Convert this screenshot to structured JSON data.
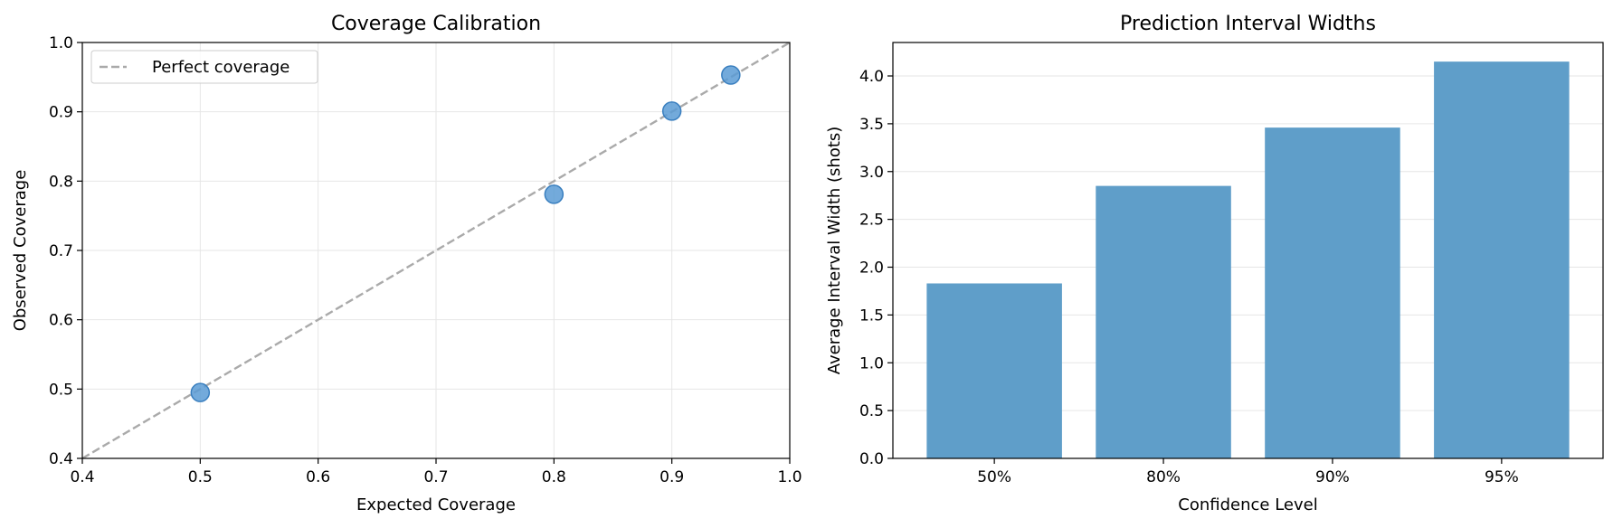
{
  "chart_data": [
    {
      "type": "scatter",
      "title": "Coverage Calibration",
      "xlabel": "Expected Coverage",
      "ylabel": "Observed Coverage",
      "xlim": [
        0.4,
        1.0
      ],
      "ylim": [
        0.4,
        1.0
      ],
      "xticks": [
        "0.4",
        "0.5",
        "0.6",
        "0.7",
        "0.8",
        "0.9",
        "1.0"
      ],
      "yticks": [
        "0.4",
        "0.5",
        "0.6",
        "0.7",
        "0.8",
        "0.9",
        "1.0"
      ],
      "grid": true,
      "legend": {
        "placement": "top-left",
        "entries": [
          "Perfect coverage"
        ]
      },
      "reference_line": {
        "name": "Perfect coverage",
        "x": [
          0.4,
          1.0
        ],
        "y": [
          0.4,
          1.0
        ],
        "color": "#aaaaaa",
        "style": "dashed"
      },
      "points": [
        {
          "x": 0.5,
          "y": 0.495
        },
        {
          "x": 0.8,
          "y": 0.781
        },
        {
          "x": 0.9,
          "y": 0.901
        },
        {
          "x": 0.95,
          "y": 0.953
        }
      ],
      "point_color": "#5b9bd5"
    },
    {
      "type": "bar",
      "title": "Prediction Interval Widths",
      "xlabel": "Confidence Level",
      "ylabel": "Average Interval Width (shots)",
      "categories": [
        "50%",
        "80%",
        "90%",
        "95%"
      ],
      "values": [
        1.83,
        2.85,
        3.46,
        4.15
      ],
      "ylim": [
        0,
        4.35
      ],
      "yticks": [
        "0.0",
        "0.5",
        "1.0",
        "1.5",
        "2.0",
        "2.5",
        "3.0",
        "3.5",
        "4.0"
      ],
      "grid": true,
      "bar_color": "#5f9ec9"
    }
  ]
}
